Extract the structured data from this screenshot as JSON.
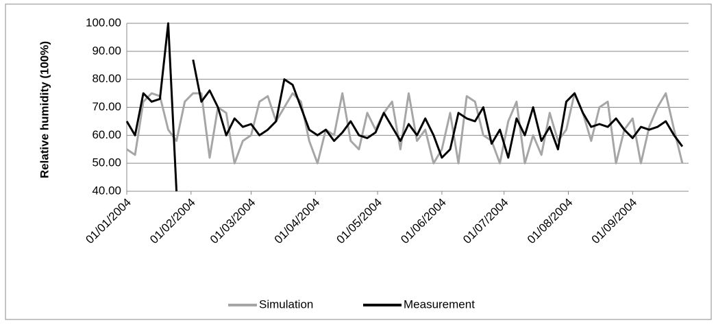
{
  "chart_data": {
    "type": "line",
    "ylabel": "Relative humidity (100%)",
    "x": [
      "01/01/2004",
      "05/01/2004",
      "09/01/2004",
      "13/01/2004",
      "17/01/2004",
      "21/01/2004",
      "25/01/2004",
      "29/01/2004",
      "02/02/2004",
      "06/02/2004",
      "10/02/2004",
      "14/02/2004",
      "18/02/2004",
      "22/02/2004",
      "26/02/2004",
      "01/03/2004",
      "05/03/2004",
      "09/03/2004",
      "13/03/2004",
      "17/03/2004",
      "21/03/2004",
      "25/03/2004",
      "29/03/2004",
      "02/04/2004",
      "06/04/2004",
      "10/04/2004",
      "14/04/2004",
      "18/04/2004",
      "22/04/2004",
      "26/04/2004",
      "30/04/2004",
      "04/05/2004",
      "08/05/2004",
      "12/05/2004",
      "16/05/2004",
      "20/05/2004",
      "24/05/2004",
      "28/05/2004",
      "01/06/2004",
      "05/06/2004",
      "09/06/2004",
      "13/06/2004",
      "17/06/2004",
      "21/06/2004",
      "25/06/2004",
      "29/06/2004",
      "03/07/2004",
      "07/07/2004",
      "11/07/2004",
      "15/07/2004",
      "19/07/2004",
      "23/07/2004",
      "27/07/2004",
      "31/07/2004",
      "04/08/2004",
      "08/08/2004",
      "12/08/2004",
      "16/08/2004",
      "20/08/2004",
      "24/08/2004",
      "28/08/2004",
      "01/09/2004",
      "05/09/2004",
      "09/09/2004",
      "13/09/2004",
      "17/09/2004",
      "21/09/2004",
      "25/09/2004"
    ],
    "series": [
      {
        "name": "Simulation",
        "color": "#a6a6a6",
        "values": [
          55,
          53,
          72,
          75,
          74,
          62,
          58,
          72,
          75,
          75,
          52,
          70,
          68,
          50,
          58,
          60,
          72,
          74,
          65,
          70,
          75,
          72,
          58,
          50,
          62,
          60,
          75,
          58,
          55,
          68,
          62,
          68,
          72,
          55,
          75,
          58,
          62,
          50,
          55,
          68,
          50,
          74,
          72,
          60,
          58,
          50,
          65,
          72,
          50,
          60,
          53,
          68,
          58,
          62,
          75,
          68,
          58,
          70,
          72,
          50,
          62,
          66,
          50,
          63,
          70,
          75,
          62,
          50
        ]
      },
      {
        "name": "Measurement",
        "color": "#000000",
        "values": [
          65,
          60,
          75,
          72,
          73,
          100,
          40,
          null,
          87,
          72,
          76,
          70,
          60,
          66,
          63,
          64,
          60,
          62,
          65,
          80,
          78,
          70,
          62,
          60,
          62,
          58,
          61,
          65,
          60,
          59,
          61,
          68,
          63,
          58,
          64,
          60,
          66,
          60,
          52,
          55,
          68,
          66,
          65,
          70,
          57,
          62,
          52,
          66,
          60,
          70,
          58,
          63,
          55,
          72,
          75,
          68,
          63,
          64,
          63,
          66,
          62,
          59,
          63,
          62,
          63,
          65,
          60,
          56
        ]
      }
    ],
    "xlim": [
      "01/01/2004",
      "28/09/2004"
    ],
    "xticks": [
      "01/01/2004",
      "01/02/2004",
      "01/03/2004",
      "01/04/2004",
      "01/05/2004",
      "01/06/2004",
      "01/07/2004",
      "01/08/2004",
      "01/09/2004"
    ],
    "ylim": [
      40,
      100
    ],
    "yticks": [
      {
        "value": 40,
        "label": "40.00"
      },
      {
        "value": 50,
        "label": "50.00"
      },
      {
        "value": 60,
        "label": "60.00"
      },
      {
        "value": 70,
        "label": "70.00"
      },
      {
        "value": 80,
        "label": "80.00"
      },
      {
        "value": 90,
        "label": "90.00"
      },
      {
        "value": 100,
        "label": "100.00"
      }
    ],
    "grid": true,
    "legend": "bottom"
  }
}
